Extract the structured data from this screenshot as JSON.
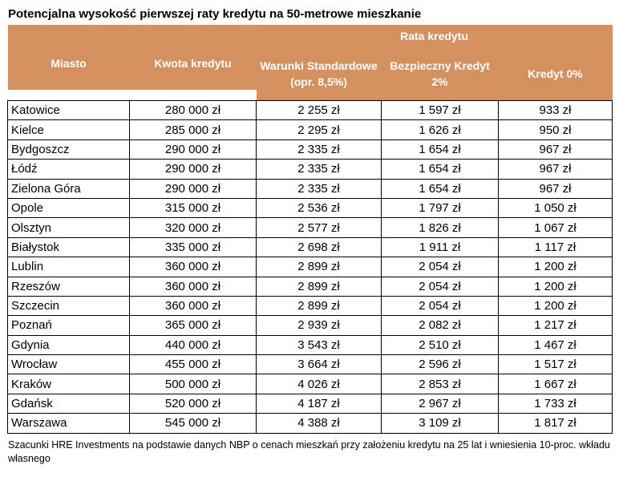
{
  "title": "Potencjalna wysokość pierwszej raty kredytu na 50-metrowe mieszkanie",
  "header": {
    "group": "Rata kredytu",
    "city": "Miasto",
    "amount": "Kwota kredytu",
    "standard": "Warunki Standardowe (opr. 8,5%)",
    "safe": "Bezpieczny Kredyt 2%",
    "zero": "Kredyt 0%"
  },
  "rows": [
    [
      "Katowice",
      "280 000 zł",
      "2 255 zł",
      "1 597 zł",
      "933 zł"
    ],
    [
      "Kielce",
      "285 000 zł",
      "2 295 zł",
      "1 626 zł",
      "950 zł"
    ],
    [
      "Bydgoszcz",
      "290 000 zł",
      "2 335 zł",
      "1 654 zł",
      "967 zł"
    ],
    [
      "Łódź",
      "290 000 zł",
      "2 335 zł",
      "1 654 zł",
      "967 zł"
    ],
    [
      "Zielona Góra",
      "290 000 zł",
      "2 335 zł",
      "1 654 zł",
      "967 zł"
    ],
    [
      "Opole",
      "315 000 zł",
      "2 536 zł",
      "1 797 zł",
      "1 050 zł"
    ],
    [
      "Olsztyn",
      "320 000 zł",
      "2 577 zł",
      "1 826 zł",
      "1 067 zł"
    ],
    [
      "Białystok",
      "335 000 zł",
      "2 698 zł",
      "1 911 zł",
      "1 117 zł"
    ],
    [
      "Lublin",
      "360 000 zł",
      "2 899 zł",
      "2 054 zł",
      "1 200 zł"
    ],
    [
      "Rzeszów",
      "360 000 zł",
      "2 899 zł",
      "2 054 zł",
      "1 200 zł"
    ],
    [
      "Szczecin",
      "360 000 zł",
      "2 899 zł",
      "2 054 zł",
      "1 200 zł"
    ],
    [
      "Poznań",
      "365 000 zł",
      "2 939 zł",
      "2 082 zł",
      "1 217 zł"
    ],
    [
      "Gdynia",
      "440 000 zł",
      "3 543 zł",
      "2 510 zł",
      "1 467 zł"
    ],
    [
      "Wrocław",
      "455 000 zł",
      "3 664 zł",
      "2 596 zł",
      "1 517 zł"
    ],
    [
      "Kraków",
      "500 000 zł",
      "4 026 zł",
      "2 853 zł",
      "1 667 zł"
    ],
    [
      "Gdańsk",
      "520 000 zł",
      "4 187 zł",
      "2 967 zł",
      "1 733 zł"
    ],
    [
      "Warszawa",
      "545 000 zł",
      "4 388 zł",
      "3 109 zł",
      "1 817 zł"
    ]
  ],
  "footnote": "Szacunki HRE Investments na podstawie danych NBP o cenach mieszkań przy założeniu kredytu na 25 lat i wniesienia 10-proc. wkładu własnego"
}
